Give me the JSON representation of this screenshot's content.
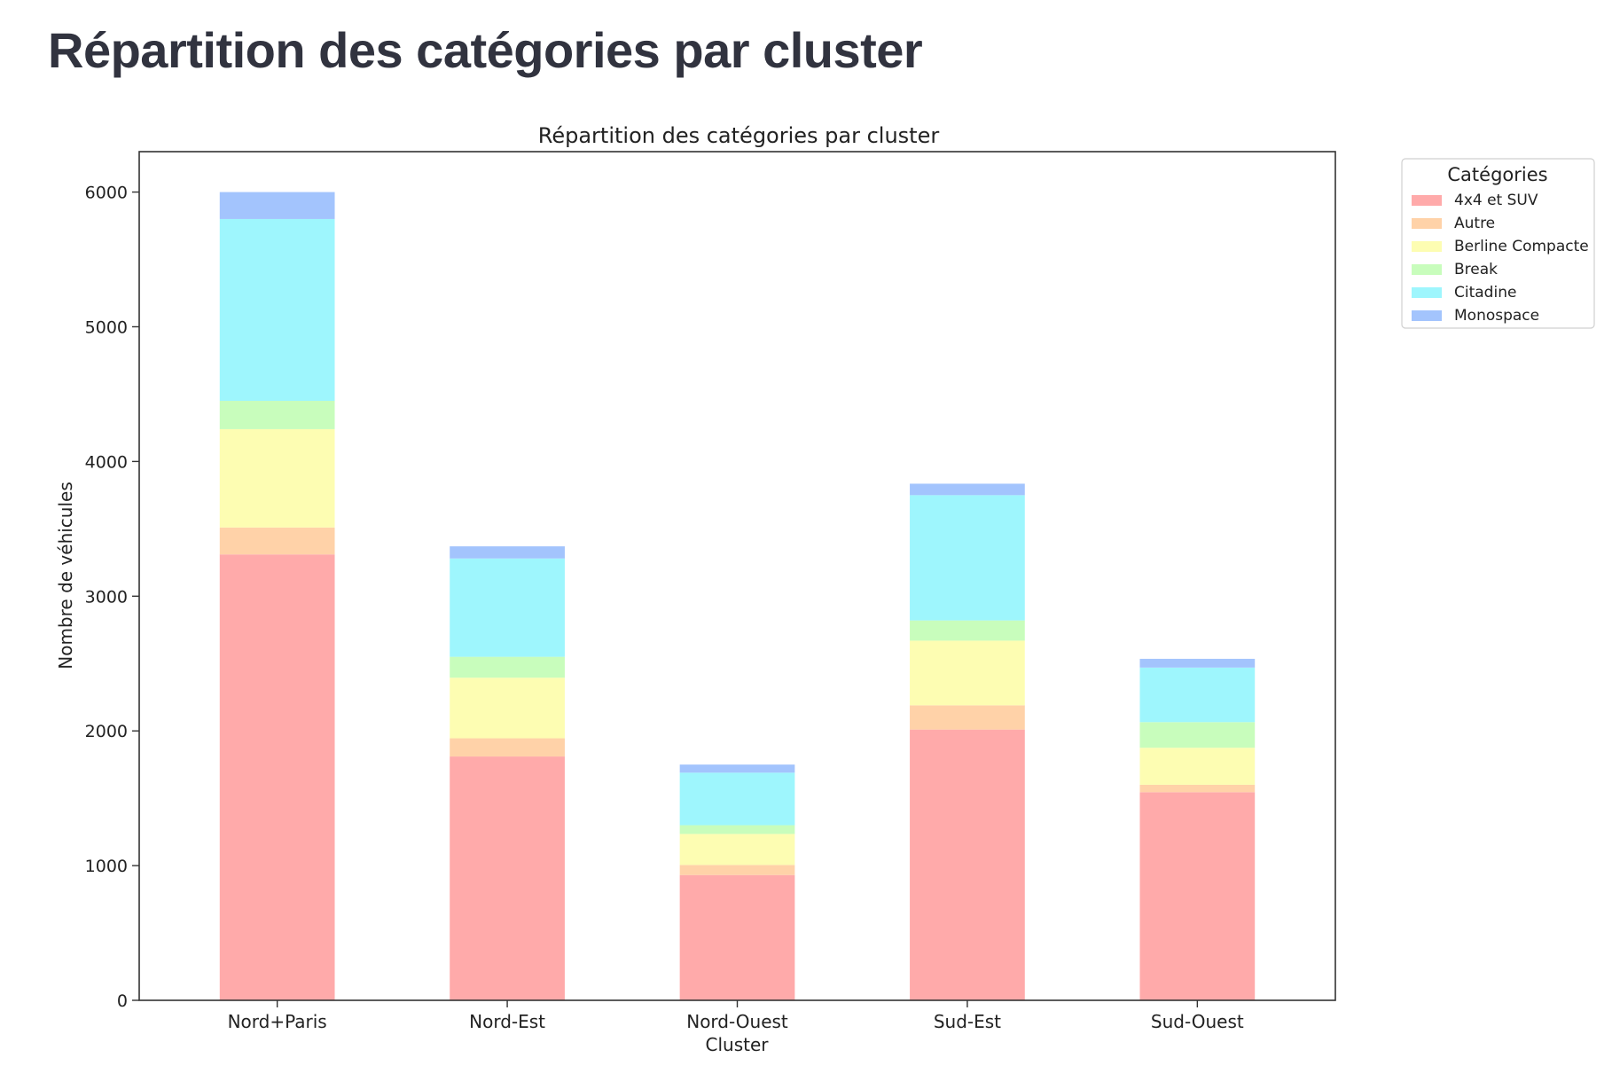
{
  "page": {
    "heading": "Répartition des catégories par cluster"
  },
  "chart_data": {
    "type": "bar",
    "stacked": true,
    "title": "Répartition des catégories par cluster",
    "xlabel": "Cluster",
    "ylabel": "Nombre de véhicules",
    "ylim": [
      0,
      6300
    ],
    "yticks": [
      0,
      1000,
      2000,
      3000,
      4000,
      5000,
      6000
    ],
    "grid": false,
    "legend_title": "Catégories",
    "legend_position": "outside top-right",
    "categories": [
      "Nord+Paris",
      "Nord-Est",
      "Nord-Ouest",
      "Sud-Est",
      "Sud-Ouest"
    ],
    "series": [
      {
        "name": "4x4 et SUV",
        "color": "#ffaaaa",
        "values": [
          3310,
          1810,
          930,
          2010,
          1545
        ]
      },
      {
        "name": "Autre",
        "color": "#ffd2a8",
        "values": [
          200,
          135,
          75,
          180,
          55
        ]
      },
      {
        "name": "Berline Compacte",
        "color": "#fdfdb2",
        "values": [
          730,
          450,
          230,
          480,
          275
        ]
      },
      {
        "name": "Break",
        "color": "#c8fdbc",
        "values": [
          210,
          155,
          65,
          150,
          190
        ]
      },
      {
        "name": "Citadine",
        "color": "#9ef6fd",
        "values": [
          1350,
          730,
          390,
          930,
          405
        ]
      },
      {
        "name": "Monospace",
        "color": "#a3c4fd",
        "values": [
          200,
          90,
          60,
          85,
          65
        ]
      }
    ]
  }
}
